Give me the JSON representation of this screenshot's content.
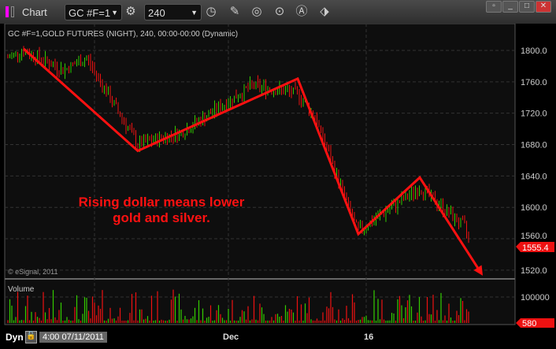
{
  "window": {
    "title": "Chart",
    "symbol": "GC #F=1",
    "interval": "240",
    "controls": [
      "restore",
      "minimize",
      "maximize",
      "close"
    ]
  },
  "toolbar_icons": [
    "gear-icon",
    "clock-icon",
    "pencil-icon",
    "study-icon",
    "play-icon",
    "alert-icon",
    "link-icon"
  ],
  "chart": {
    "header": "GC #F=1,GOLD FUTURES (NIGHT), 240, 00:00-00:00 (Dynamic)",
    "copyright": "© eSignal, 2011",
    "annotation_line1": "Rising dollar means lower",
    "annotation_line2": "gold and silver.",
    "last_price": "1555.4",
    "volume_label": "Volume",
    "last_volume": "580"
  },
  "footer": {
    "mode": "Dyn",
    "cursor_time": "4:00 07/11/2011",
    "x_labels": [
      "Dec",
      "16"
    ]
  },
  "colors": {
    "up": "#33cc00",
    "down": "#ee1111",
    "trendline": "#ff1111",
    "accent": "#ff00ff"
  },
  "chart_data": {
    "type": "candlestick",
    "y_ticks": [
      1800,
      1760,
      1720,
      1680,
      1640,
      1600,
      1560,
      1520
    ],
    "y_tick_labels": [
      "1800.0",
      "1760.0",
      "1720.0",
      "1680.0",
      "1640.0",
      "1600.0",
      "1560.0",
      "1520.0"
    ],
    "ylim": [
      1510,
      1834
    ],
    "volume_ticks": [
      "100000"
    ],
    "trendline_pivots": [
      1802,
      1672,
      1764,
      1566,
      1638,
      1513
    ],
    "last": 1555.4,
    "grid": true
  }
}
